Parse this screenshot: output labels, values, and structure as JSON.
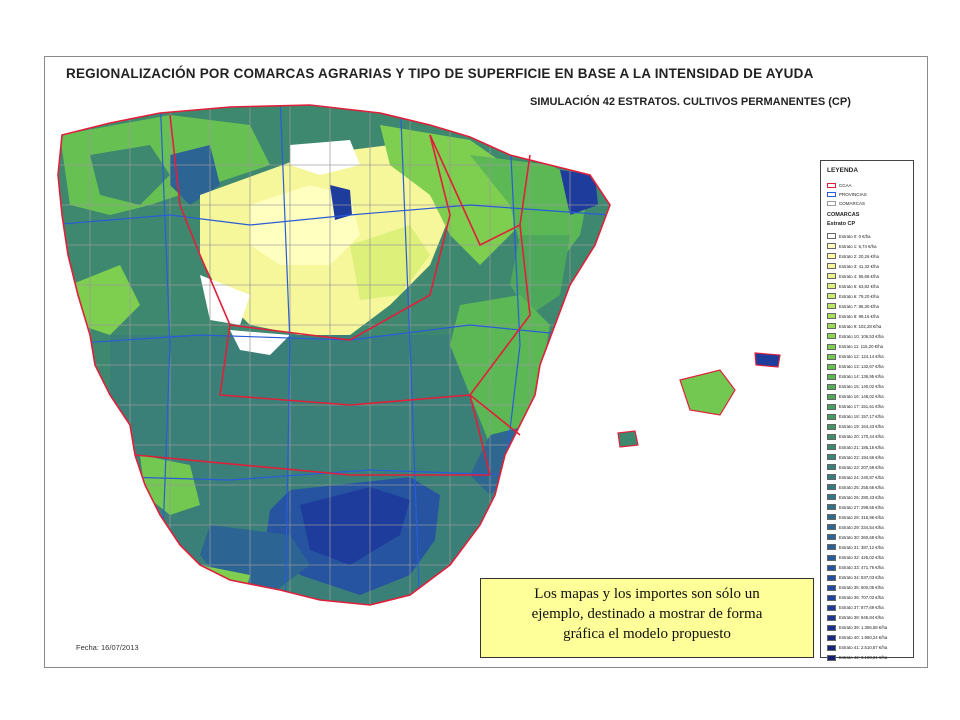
{
  "map": {
    "title": "REGIONALIZACIÓN POR COMARCAS AGRARIAS Y TIPO DE SUPERFICIE EN BASE A LA INTENSIDAD DE AYUDA",
    "subtitle": "SIMULACIÓN 42 ESTRATOS. CULTIVOS PERMANENTES (CP)",
    "date": "Fecha: 16/07/2013",
    "colors": {
      "ccaa_border": "#e0203a",
      "provincias_border": "#2a5cd8",
      "comarcas_border": "#9a9a9a"
    }
  },
  "legend": {
    "title": "LEYENDA",
    "boundaries": [
      {
        "label": "CCAA",
        "color": "#e0203a"
      },
      {
        "label": "PROVINCIAS",
        "color": "#2a5cd8"
      },
      {
        "label": "COMARCAS",
        "color": "#9a9a9a"
      }
    ],
    "comarcas_heading": "COMARCAS",
    "estrato_heading": "Estrato CP",
    "strata": [
      {
        "label": "Estrato 0: 0 €/ha",
        "color": "#ffffff"
      },
      {
        "label": "Estrato 1: 6,74 €/ha",
        "color": "#ffffc0"
      },
      {
        "label": "Estrato 2: 20,26 €/ha",
        "color": "#ffffa8"
      },
      {
        "label": "Estrato 3: 41,32 €/ha",
        "color": "#f6f79a"
      },
      {
        "label": "Estrato 4: 55,68 €/ha",
        "color": "#eaf48a"
      },
      {
        "label": "Estrato 5: 63,82 €/ha",
        "color": "#dcf07a"
      },
      {
        "label": "Estrato 6: 79,20 €/ha",
        "color": "#cceb6c"
      },
      {
        "label": "Estrato 7: 86,30 €/ha",
        "color": "#bce660"
      },
      {
        "label": "Estrato 8: 99,16 €/ha",
        "color": "#ace05a"
      },
      {
        "label": "Estrato 9: 102,28 €/ha",
        "color": "#9cda55"
      },
      {
        "label": "Estrato 10: 106,53 €/ha",
        "color": "#8cd452"
      },
      {
        "label": "Estrato 11: 115,20 €/ha",
        "color": "#7ece50"
      },
      {
        "label": "Estrato 12: 124,14 €/ha",
        "color": "#72c850"
      },
      {
        "label": "Estrato 13: 132,67 €/ha",
        "color": "#66c052"
      },
      {
        "label": "Estrato 14: 136,95 €/ha",
        "color": "#5cb854"
      },
      {
        "label": "Estrato 15: 140,02 €/ha",
        "color": "#54b058"
      },
      {
        "label": "Estrato 16: 146,02 €/ha",
        "color": "#4ea85c"
      },
      {
        "label": "Estrato 17: 151,61 €/ha",
        "color": "#4aa060"
      },
      {
        "label": "Estrato 18: 157,17 €/ha",
        "color": "#469864"
      },
      {
        "label": "Estrato 19: 164,43 €/ha",
        "color": "#439268"
      },
      {
        "label": "Estrato 20: 170,44 €/ha",
        "color": "#408c6c"
      },
      {
        "label": "Estrato 21: 185,16 €/ha",
        "color": "#3e8870"
      },
      {
        "label": "Estrato 22: 194,66 €/ha",
        "color": "#3c8474"
      },
      {
        "label": "Estrato 23: 207,59 €/ha",
        "color": "#3a8078"
      },
      {
        "label": "Estrato 24: 240,87 €/ha",
        "color": "#387c7c"
      },
      {
        "label": "Estrato 25: 255,66 €/ha",
        "color": "#367880"
      },
      {
        "label": "Estrato 26: 280,43 €/ha",
        "color": "#347484"
      },
      {
        "label": "Estrato 27: 298,65 €/ha",
        "color": "#327088"
      },
      {
        "label": "Estrato 28: 316,96 €/ha",
        "color": "#306c8c"
      },
      {
        "label": "Estrato 29: 334,54 €/ha",
        "color": "#2e6890"
      },
      {
        "label": "Estrato 30: 360,68 €/ha",
        "color": "#2c6494"
      },
      {
        "label": "Estrato 31: 387,12 €/ha",
        "color": "#2a6098"
      },
      {
        "label": "Estrato 32: 425,02 €/ha",
        "color": "#285a9c"
      },
      {
        "label": "Estrato 33: 471,76 €/ha",
        "color": "#2654a0"
      },
      {
        "label": "Estrato 34: 537,03 €/ha",
        "color": "#244ea2"
      },
      {
        "label": "Estrato 35: 600,05 €/ha",
        "color": "#2248a2"
      },
      {
        "label": "Estrato 36: 707,03 €/ha",
        "color": "#2042a0"
      },
      {
        "label": "Estrato 37: 877,69 €/ha",
        "color": "#1e3c9c"
      },
      {
        "label": "Estrato 38: 946,84 €/ha",
        "color": "#1c3696"
      },
      {
        "label": "Estrato 39: 1.356,58 €/ha",
        "color": "#1a308e"
      },
      {
        "label": "Estrato 40: 1.960,24 €/ha",
        "color": "#182a86"
      },
      {
        "label": "Estrato 41: 2.510,57 €/ha",
        "color": "#16247c"
      },
      {
        "label": "Estrato 42: 3.103,21 €/ha",
        "color": "#141e70"
      }
    ]
  },
  "disclaimer": {
    "line1": "Los mapas y los importes son sólo un",
    "line2": "ejemplo, destinado a mostrar de forma",
    "line3": "gráfica el modelo propuesto"
  }
}
